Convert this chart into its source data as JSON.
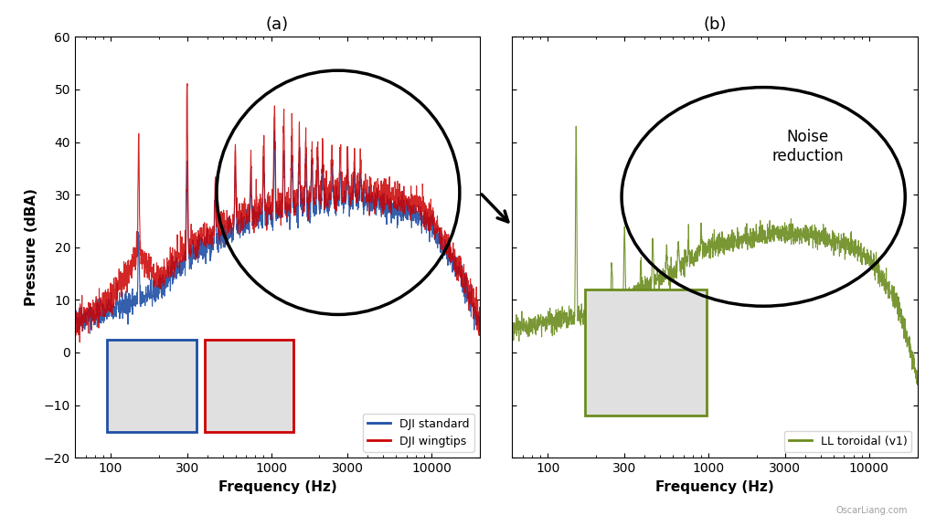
{
  "title_a": "(a)",
  "title_b": "(b)",
  "xlabel": "Frequency (Hz)",
  "ylabel": "Pressure (dBA)",
  "ylim": [
    -20,
    60
  ],
  "xlim_log": [
    60,
    20000
  ],
  "xticks": [
    100,
    300,
    1000,
    3000,
    10000
  ],
  "xtick_labels": [
    "100",
    "300",
    "1000",
    "3000",
    "10000"
  ],
  "yticks": [
    -20,
    -10,
    0,
    10,
    20,
    30,
    40,
    50,
    60
  ],
  "color_blue": "#1e4fa5",
  "color_red": "#cc0000",
  "color_green": "#6b8c1e",
  "legend_a": [
    "DJI standard",
    "DJI wingtips"
  ],
  "legend_b": [
    "LL toroidal (v1)"
  ],
  "noise_reduction_text": "Noise\nreduction",
  "background_color": "#ffffff",
  "watermark": "OscarLiang.com"
}
